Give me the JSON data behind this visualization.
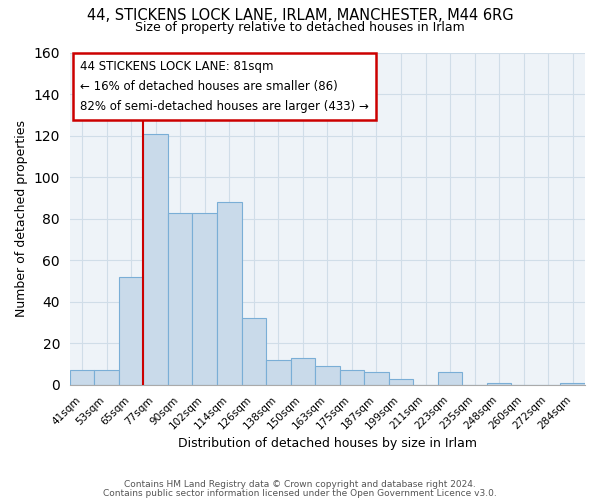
{
  "title_line1": "44, STICKENS LOCK LANE, IRLAM, MANCHESTER, M44 6RG",
  "title_line2": "Size of property relative to detached houses in Irlam",
  "xlabel": "Distribution of detached houses by size in Irlam",
  "ylabel": "Number of detached properties",
  "bin_labels": [
    "41sqm",
    "53sqm",
    "65sqm",
    "77sqm",
    "90sqm",
    "102sqm",
    "114sqm",
    "126sqm",
    "138sqm",
    "150sqm",
    "163sqm",
    "175sqm",
    "187sqm",
    "199sqm",
    "211sqm",
    "223sqm",
    "235sqm",
    "248sqm",
    "260sqm",
    "272sqm",
    "284sqm"
  ],
  "bar_heights": [
    7,
    7,
    52,
    121,
    83,
    83,
    88,
    32,
    12,
    13,
    9,
    7,
    6,
    3,
    0,
    6,
    0,
    1,
    0,
    0,
    1
  ],
  "bar_color": "#c9daea",
  "bar_edge_color": "#7aaed6",
  "highlight_color": "#cc0000",
  "ylim": [
    0,
    160
  ],
  "yticks": [
    0,
    20,
    40,
    60,
    80,
    100,
    120,
    140,
    160
  ],
  "annotation_title": "44 STICKENS LOCK LANE: 81sqm",
  "annotation_line1": "← 16% of detached houses are smaller (86)",
  "annotation_line2": "82% of semi-detached houses are larger (433) →",
  "annotation_box_color": "#ffffff",
  "annotation_box_edge": "#cc0000",
  "footer_line1": "Contains HM Land Registry data © Crown copyright and database right 2024.",
  "footer_line2": "Contains public sector information licensed under the Open Government Licence v3.0."
}
